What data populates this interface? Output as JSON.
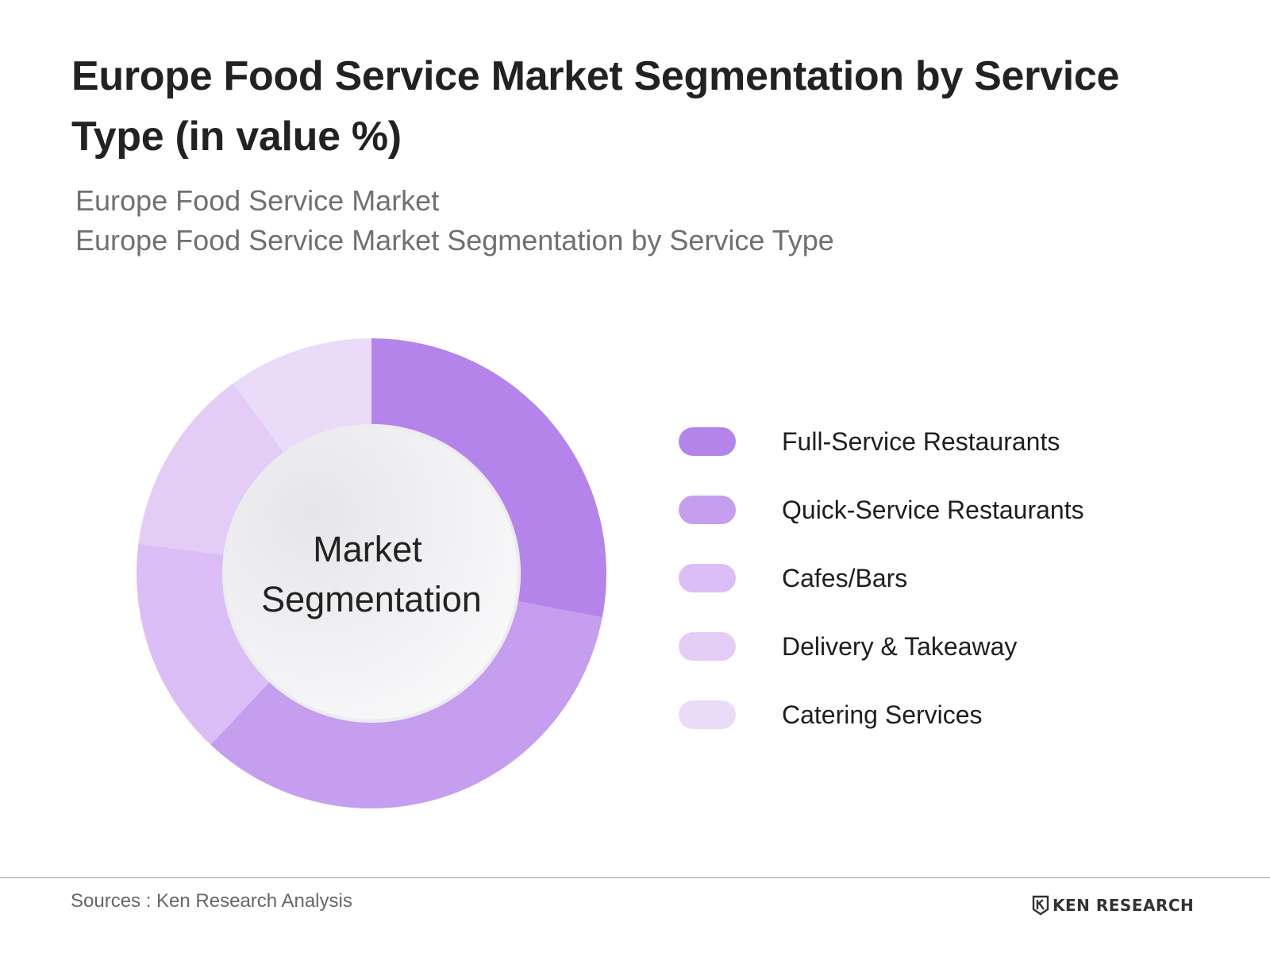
{
  "chart_data": {
    "type": "pie",
    "title": "Europe Food Service Market Segmentation by Service Type (in value %)",
    "subtitle": [
      "Europe Food Service Market",
      "Europe Food Service Market Segmentation by Service Type"
    ],
    "center_label": [
      "Market",
      "Segmentation"
    ],
    "categories": [
      "Full-Service Restaurants",
      "Quick-Service Restaurants",
      "Cafes/Bars",
      "Delivery & Takeaway",
      "Catering Services"
    ],
    "values": [
      28,
      34,
      15,
      13,
      10
    ],
    "unit": "%",
    "colors": [
      "#b484eb",
      "#c69eef",
      "#dbbef5",
      "#e3cdf7",
      "#eadbf9"
    ],
    "donut": true,
    "legend_position": "right"
  },
  "footer": {
    "source": "Sources : Ken Research Analysis",
    "brand": "KEN RESEARCH"
  },
  "icons": {
    "brand_logo": "ken-research-logo-icon"
  }
}
